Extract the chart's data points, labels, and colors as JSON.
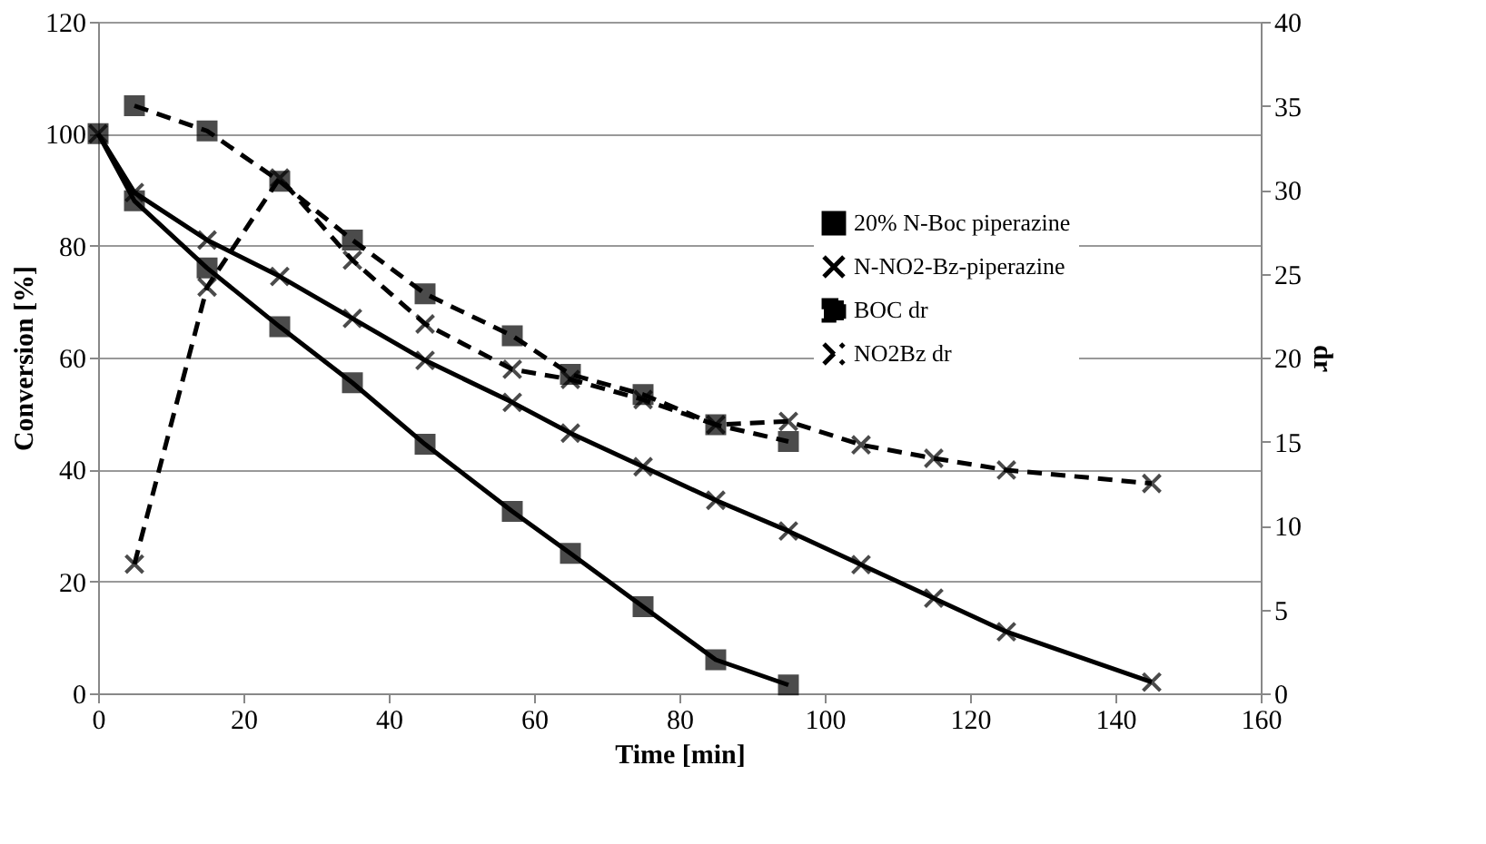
{
  "chart_data": {
    "type": "line",
    "xlabel": "Time [min]",
    "ylabel": "Conversion [%]",
    "y2label": "dr",
    "xlim": [
      0,
      160
    ],
    "xticks": [
      0,
      20,
      40,
      60,
      80,
      100,
      120,
      140,
      160
    ],
    "ylim": [
      0,
      120
    ],
    "yticks": [
      0,
      20,
      40,
      60,
      80,
      100,
      120
    ],
    "y2lim": [
      0,
      40
    ],
    "y2ticks": [
      0,
      5,
      10,
      15,
      20,
      25,
      30,
      35,
      40
    ],
    "grid": "y",
    "legend": "top right",
    "series": [
      {
        "name": "20% N-Boc piperazine",
        "color": "#000000",
        "marker": "square",
        "line_style": "solid",
        "x": [
          0,
          5,
          15,
          25,
          35,
          45,
          57,
          65,
          75,
          85,
          95
        ],
        "values": [
          100,
          88,
          76,
          65.5,
          55.5,
          44.5,
          32.5,
          25,
          15.5,
          6,
          1.5
        ]
      },
      {
        "name": "N-NO2-Bz-piperazine",
        "color": "#000000",
        "marker": "cross",
        "line_style": "solid",
        "x": [
          0,
          5,
          15,
          25,
          35,
          45,
          57,
          65,
          75,
          85,
          95,
          105,
          115,
          125,
          145
        ],
        "values": [
          100,
          89.5,
          81,
          74.5,
          67,
          59.5,
          52,
          46.5,
          40.5,
          34.5,
          29,
          23,
          17,
          11,
          2
        ]
      },
      {
        "name": "BOC dr",
        "color": "#000000",
        "marker": "square",
        "line_style": "dashed",
        "axis": "y2",
        "x": [
          5,
          15,
          25,
          35,
          45,
          57,
          65,
          75,
          85,
          95
        ],
        "values": [
          35,
          33.5,
          30.5,
          27,
          23.8,
          21.3,
          19,
          17.8,
          16,
          15
        ]
      },
      {
        "name": "NO2Bz dr",
        "color": "#000000",
        "marker": "cross",
        "line_style": "dashed",
        "axis": "y2",
        "x": [
          5,
          15,
          25,
          35,
          45,
          57,
          65,
          75,
          85,
          95,
          105,
          115,
          125,
          145
        ],
        "values": [
          7.7,
          24.2,
          30.7,
          25.8,
          22,
          19.3,
          18.7,
          17.5,
          16,
          16.2,
          14.8,
          14,
          13.3,
          12.5
        ]
      }
    ]
  }
}
